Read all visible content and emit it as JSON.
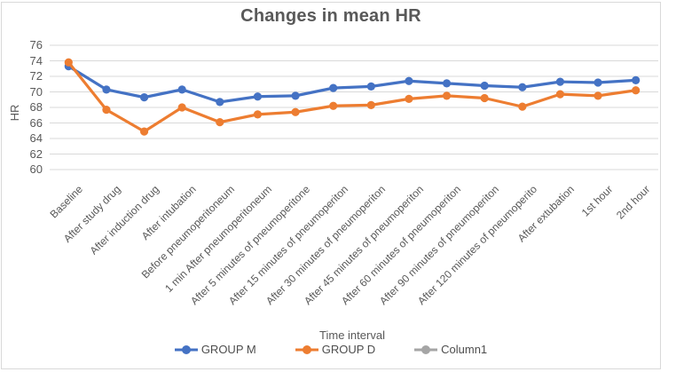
{
  "chart_data": {
    "type": "line",
    "title": "Changes in mean HR",
    "xlabel": "Time interval",
    "ylabel": "HR",
    "ylim": [
      60,
      76
    ],
    "y_ticks": [
      76,
      74,
      72,
      70,
      68,
      66,
      64,
      62,
      60
    ],
    "grid": true,
    "legend_position": "bottom",
    "marker": "circle",
    "categories": [
      "Baseline",
      "After study drug",
      "After induction drug",
      "After intubation",
      "Before pneumoperitoneum",
      "1 min After pneumoperitoneum",
      "After 5 minutes of pneumoperitone",
      "After 15 minutes of pneumoperiton",
      "After 30 minutes of pneumoperiton",
      "After 45 minutes of pneumoperiton",
      "After 60 minutes of pneumoperiton",
      "After 90 minutes of pneumoperiton",
      "After 120 minutes of pneumoperito",
      "After extubation",
      "1st hour",
      "2nd hour"
    ],
    "series": [
      {
        "name": "GROUP M",
        "color": "#4472C4",
        "values": [
          73.3,
          70.3,
          69.3,
          70.3,
          68.7,
          69.4,
          69.5,
          70.5,
          70.7,
          71.4,
          71.1,
          70.8,
          70.6,
          71.3,
          71.2,
          71.5
        ]
      },
      {
        "name": "GROUP D",
        "color": "#ED7D31",
        "values": [
          73.8,
          67.7,
          64.9,
          68.0,
          66.1,
          67.1,
          67.4,
          68.2,
          68.3,
          69.1,
          69.5,
          69.2,
          68.1,
          69.7,
          69.5,
          70.2
        ]
      },
      {
        "name": "Column1",
        "color": "#A5A5A5",
        "values": []
      }
    ]
  },
  "colors": {
    "grid": "#D9D9D9",
    "text": "#595959",
    "title": "#595959",
    "border": "#D9D9D9",
    "background": "#FFFFFF"
  }
}
